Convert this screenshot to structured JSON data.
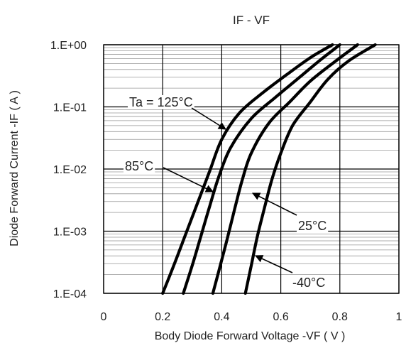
{
  "chart_data": {
    "type": "line",
    "title": "IF - VF",
    "xlabel": "Body Diode Forward Voltage -VF ( V )",
    "ylabel": "Diode Forward Current -IF  ( A )",
    "x_scale": "linear",
    "y_scale": "log",
    "xlim": [
      0,
      1
    ],
    "ylim": [
      0.0001,
      1
    ],
    "x_ticks": [
      0,
      0.2,
      0.4,
      0.6,
      0.8,
      1
    ],
    "x_tick_labels": [
      "0",
      "0.2",
      "0.4",
      "0.6",
      "0.8",
      "1"
    ],
    "y_ticks": [
      0.0001,
      0.001,
      0.01,
      0.1,
      1
    ],
    "y_tick_labels": [
      "1.E-04",
      "1.E-03",
      "1.E-02",
      "1.E-01",
      "1.E+00"
    ],
    "grid": true,
    "legend": "none",
    "series": [
      {
        "name": "Ta = 125°C",
        "x": [
          0.2,
          0.24,
          0.28,
          0.32,
          0.36,
          0.4,
          0.46,
          0.54,
          0.62,
          0.7,
          0.775
        ],
        "y": [
          0.0001,
          0.0003,
          0.00095,
          0.003,
          0.0095,
          0.03,
          0.08,
          0.17,
          0.33,
          0.62,
          1
        ]
      },
      {
        "name": "85°C",
        "x": [
          0.27,
          0.3,
          0.33,
          0.36,
          0.39,
          0.43,
          0.5,
          0.58,
          0.66,
          0.73,
          0.8
        ],
        "y": [
          0.0001,
          0.00028,
          0.00085,
          0.0026,
          0.0075,
          0.022,
          0.065,
          0.14,
          0.29,
          0.55,
          1
        ]
      },
      {
        "name": "25°C",
        "x": [
          0.37,
          0.395,
          0.42,
          0.445,
          0.47,
          0.5,
          0.56,
          0.63,
          0.7,
          0.78,
          0.86
        ],
        "y": [
          0.0001,
          0.00028,
          0.0008,
          0.0024,
          0.0068,
          0.018,
          0.055,
          0.12,
          0.26,
          0.52,
          1
        ]
      },
      {
        "name": "-40°C",
        "x": [
          0.48,
          0.5,
          0.52,
          0.545,
          0.57,
          0.6,
          0.64,
          0.7,
          0.76,
          0.83,
          0.92
        ],
        "y": [
          0.0001,
          0.00028,
          0.0008,
          0.0024,
          0.0068,
          0.018,
          0.05,
          0.12,
          0.28,
          0.55,
          1
        ]
      }
    ],
    "annotations": [
      {
        "text": "Ta = 125°C",
        "series": "Ta = 125°C"
      },
      {
        "text": "85°C",
        "series": "85°C"
      },
      {
        "text": "25°C",
        "series": "25°C"
      },
      {
        "text": "-40°C",
        "series": "-40°C"
      }
    ],
    "line_color": "#000000",
    "grid_color": "#999999"
  }
}
